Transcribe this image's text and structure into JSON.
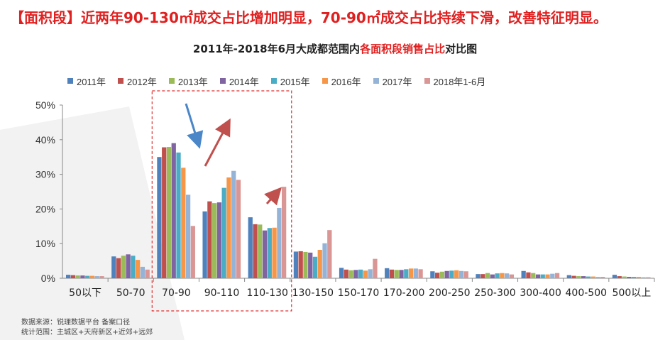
{
  "headline": "【面积段】近两年90-130㎡成交占比增加明显，70-90㎡成交占比持续下滑，改善特征明显。",
  "chart_title_prefix": "2011年-2018年6月大成都范围内",
  "chart_title_highlight": "各面积段销售占比",
  "chart_title_suffix": "对比图",
  "source_line1": "数据来源：锐理数据平台 备案口径",
  "source_line2": "统计范围：主城区+天府新区+近郊+远郊",
  "colors": {
    "accent_red": "#e02020",
    "highlight_box": "#e03030",
    "arrow_blue": "#4a86c8",
    "arrow_red": "#c0504d"
  },
  "chart_data": {
    "type": "bar",
    "categories": [
      "50以下",
      "50-70",
      "70-90",
      "90-110",
      "110-130",
      "130-150",
      "150-170",
      "170-200",
      "200-250",
      "250-300",
      "300-400",
      "400-500",
      "500以上"
    ],
    "ylim": [
      0,
      50
    ],
    "yticks": [
      0,
      10,
      20,
      30,
      40,
      50
    ],
    "ytick_labels": [
      "0%",
      "10%",
      "20%",
      "30%",
      "40%",
      "50%"
    ],
    "ylabel": "",
    "xlabel": "",
    "legend_position": "top",
    "highlight_categories": [
      "70-90",
      "90-110",
      "110-130"
    ],
    "series": [
      {
        "name": "2011年",
        "color": "#4f81bd",
        "values": [
          1.0,
          6.3,
          35.0,
          19.3,
          17.6,
          7.7,
          3.0,
          2.9,
          2.0,
          1.2,
          2.1,
          0.9,
          1.0
        ]
      },
      {
        "name": "2012年",
        "color": "#c0504d",
        "values": [
          0.9,
          5.8,
          37.8,
          22.2,
          15.6,
          7.8,
          2.5,
          2.5,
          1.6,
          1.2,
          1.7,
          0.7,
          0.6
        ]
      },
      {
        "name": "2013年",
        "color": "#9bbb59",
        "values": [
          0.8,
          6.5,
          37.9,
          21.7,
          15.5,
          7.6,
          2.3,
          2.4,
          1.9,
          1.5,
          1.5,
          0.6,
          0.5
        ]
      },
      {
        "name": "2014年",
        "color": "#8064a2",
        "values": [
          0.8,
          6.9,
          39.0,
          21.9,
          13.8,
          7.4,
          2.4,
          2.4,
          2.1,
          1.1,
          1.1,
          0.6,
          0.4
        ]
      },
      {
        "name": "2015年",
        "color": "#4bacc6",
        "values": [
          0.7,
          6.5,
          36.3,
          26.1,
          14.5,
          6.2,
          2.5,
          2.6,
          2.2,
          1.4,
          1.1,
          0.5,
          0.4
        ]
      },
      {
        "name": "2016年",
        "color": "#f79646",
        "values": [
          0.7,
          5.3,
          31.9,
          29.1,
          14.6,
          8.2,
          2.2,
          2.8,
          2.3,
          1.5,
          1.1,
          0.5,
          0.4
        ]
      },
      {
        "name": "2017年",
        "color": "#95b3d7",
        "values": [
          0.6,
          3.3,
          24.1,
          31.0,
          20.3,
          10.1,
          2.6,
          2.8,
          2.1,
          1.4,
          1.3,
          0.4,
          0.3
        ]
      },
      {
        "name": "2018年1-6月",
        "color": "#d99694",
        "values": [
          0.6,
          2.5,
          15.1,
          28.4,
          26.4,
          13.9,
          5.6,
          2.6,
          2.0,
          1.1,
          1.5,
          0.4,
          0.3
        ]
      }
    ]
  }
}
